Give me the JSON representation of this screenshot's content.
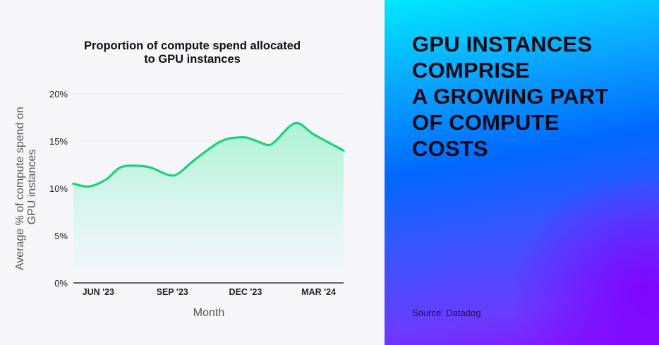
{
  "panel": {
    "headline": [
      "GPU INSTANCES",
      "COMPRISE",
      "A GROWING PART",
      "OF COMPUTE",
      "COSTS"
    ],
    "source": "Source: Datadog"
  },
  "colors": {
    "line": "#1ed07f",
    "fill": "#a8f3d4",
    "left_bg": "#f7f7f9",
    "gradient": [
      "#00e8ff",
      "#0068ff",
      "#8a10ff"
    ]
  },
  "chart_data": {
    "type": "area",
    "title": "Proportion of compute spend allocated to GPU instances",
    "title_lines": [
      "Proportion of compute spend allocated",
      "to GPU instances"
    ],
    "xlabel": "Month",
    "ylabel_lines": [
      "Average % of compute spend on",
      "GPU instances"
    ],
    "ylim": [
      0,
      20
    ],
    "yticks": [
      0,
      5,
      10,
      15,
      20
    ],
    "ytick_labels": [
      "0%",
      "5%",
      "10%",
      "15%",
      "20%"
    ],
    "xlim": [
      "2023-05-01",
      "2024-04-01"
    ],
    "xticks": [
      "2023-06-01",
      "2023-09-01",
      "2023-12-01",
      "2024-03-01"
    ],
    "xtick_labels": [
      "JUN '23",
      "SEP '23",
      "DEC '23",
      "MAR '24"
    ],
    "grid": true,
    "x": [
      "2023-05-01",
      "2023-05-20",
      "2023-06-10",
      "2023-06-28",
      "2023-07-17",
      "2023-08-05",
      "2023-08-28",
      "2023-09-09",
      "2023-09-30",
      "2023-11-01",
      "2023-11-27",
      "2023-12-12",
      "2023-12-28",
      "2024-01-06",
      "2024-02-01",
      "2024-02-24",
      "2024-04-01"
    ],
    "y": [
      10.5,
      10.2,
      10.9,
      12.2,
      12.4,
      12.2,
      11.4,
      11.6,
      13.1,
      15.0,
      15.4,
      15.1,
      14.6,
      14.9,
      16.9,
      15.7,
      14.0
    ]
  }
}
